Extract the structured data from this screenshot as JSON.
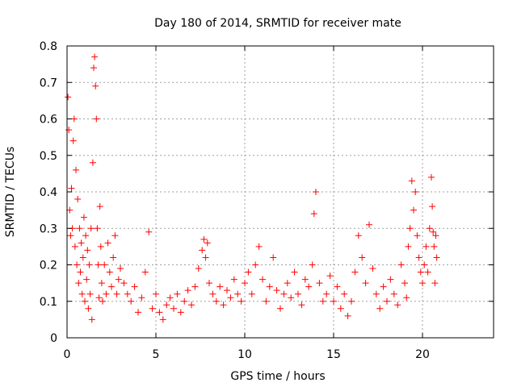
{
  "chart_data": {
    "type": "scatter",
    "title": "Day 180 of 2014, SRMTID for receiver mate",
    "xlabel": "GPS time / hours",
    "ylabel": "SRMTID / TECUs",
    "xlim": [
      0,
      24
    ],
    "ylim": [
      0,
      0.8
    ],
    "xticks": [
      0,
      5,
      10,
      15,
      20
    ],
    "yticks": [
      0,
      0.1,
      0.2,
      0.3,
      0.4,
      0.5,
      0.6,
      0.7,
      0.8
    ],
    "ytick_labels": [
      "0",
      "0.1",
      "0.2",
      "0.3",
      "0.4",
      "0.5",
      "0.6",
      "0.7",
      "0.8"
    ],
    "grid": true,
    "marker": "+",
    "colors": {
      "points": "#ff0000",
      "grid": "#a0a0a0",
      "axis": "#000000"
    },
    "series": [
      {
        "name": "SRMTID",
        "x": [
          0.05,
          0.1,
          0.15,
          0.2,
          0.25,
          0.3,
          0.35,
          0.4,
          0.45,
          0.5,
          0.55,
          0.6,
          0.65,
          0.7,
          0.75,
          0.8,
          0.85,
          0.9,
          0.95,
          1.0,
          1.05,
          1.1,
          1.15,
          1.2,
          1.25,
          1.3,
          1.35,
          1.4,
          1.45,
          1.5,
          1.55,
          1.6,
          1.65,
          1.7,
          1.75,
          1.8,
          1.85,
          1.9,
          1.95,
          2.0,
          2.1,
          2.2,
          2.3,
          2.4,
          2.5,
          2.6,
          2.7,
          2.8,
          2.9,
          3.0,
          3.2,
          3.4,
          3.6,
          3.8,
          4.0,
          4.2,
          4.4,
          4.6,
          4.8,
          5.0,
          5.2,
          5.4,
          5.6,
          5.8,
          6.0,
          6.2,
          6.4,
          6.6,
          6.8,
          7.0,
          7.2,
          7.4,
          7.6,
          7.7,
          7.8,
          7.9,
          8.0,
          8.2,
          8.4,
          8.6,
          8.8,
          9.0,
          9.2,
          9.4,
          9.6,
          9.8,
          10.0,
          10.2,
          10.4,
          10.6,
          10.8,
          11.0,
          11.2,
          11.4,
          11.6,
          11.8,
          12.0,
          12.2,
          12.4,
          12.6,
          12.8,
          13.0,
          13.2,
          13.4,
          13.6,
          13.8,
          13.9,
          14.0,
          14.2,
          14.4,
          14.6,
          14.8,
          15.0,
          15.2,
          15.4,
          15.6,
          15.8,
          16.0,
          16.2,
          16.4,
          16.6,
          16.8,
          17.0,
          17.2,
          17.4,
          17.6,
          17.8,
          18.0,
          18.2,
          18.4,
          18.6,
          18.8,
          19.0,
          19.1,
          19.2,
          19.3,
          19.4,
          19.5,
          19.6,
          19.7,
          19.8,
          19.9,
          20.0,
          20.1,
          20.2,
          20.3,
          20.4,
          20.5,
          20.55,
          20.6,
          20.65,
          20.7,
          20.75,
          20.8
        ],
        "y": [
          0.66,
          0.57,
          0.35,
          0.28,
          0.41,
          0.3,
          0.54,
          0.6,
          0.25,
          0.46,
          0.2,
          0.38,
          0.15,
          0.3,
          0.18,
          0.26,
          0.12,
          0.22,
          0.33,
          0.1,
          0.28,
          0.16,
          0.24,
          0.08,
          0.2,
          0.12,
          0.3,
          0.05,
          0.48,
          0.74,
          0.77,
          0.69,
          0.6,
          0.3,
          0.2,
          0.11,
          0.36,
          0.25,
          0.15,
          0.1,
          0.2,
          0.12,
          0.26,
          0.18,
          0.14,
          0.22,
          0.28,
          0.12,
          0.16,
          0.19,
          0.15,
          0.12,
          0.1,
          0.14,
          0.07,
          0.11,
          0.18,
          0.29,
          0.08,
          0.12,
          0.07,
          0.05,
          0.09,
          0.11,
          0.08,
          0.12,
          0.07,
          0.1,
          0.13,
          0.09,
          0.14,
          0.19,
          0.24,
          0.27,
          0.22,
          0.26,
          0.15,
          0.12,
          0.1,
          0.14,
          0.09,
          0.13,
          0.11,
          0.16,
          0.12,
          0.1,
          0.15,
          0.18,
          0.12,
          0.2,
          0.25,
          0.16,
          0.1,
          0.14,
          0.22,
          0.13,
          0.08,
          0.12,
          0.15,
          0.11,
          0.18,
          0.12,
          0.09,
          0.16,
          0.14,
          0.2,
          0.34,
          0.4,
          0.15,
          0.1,
          0.12,
          0.17,
          0.1,
          0.14,
          0.08,
          0.12,
          0.06,
          0.1,
          0.18,
          0.28,
          0.22,
          0.15,
          0.31,
          0.19,
          0.12,
          0.08,
          0.14,
          0.1,
          0.16,
          0.12,
          0.09,
          0.2,
          0.15,
          0.11,
          0.25,
          0.3,
          0.43,
          0.35,
          0.4,
          0.28,
          0.22,
          0.18,
          0.15,
          0.2,
          0.25,
          0.18,
          0.3,
          0.44,
          0.36,
          0.29,
          0.25,
          0.15,
          0.28,
          0.22
        ]
      }
    ]
  }
}
